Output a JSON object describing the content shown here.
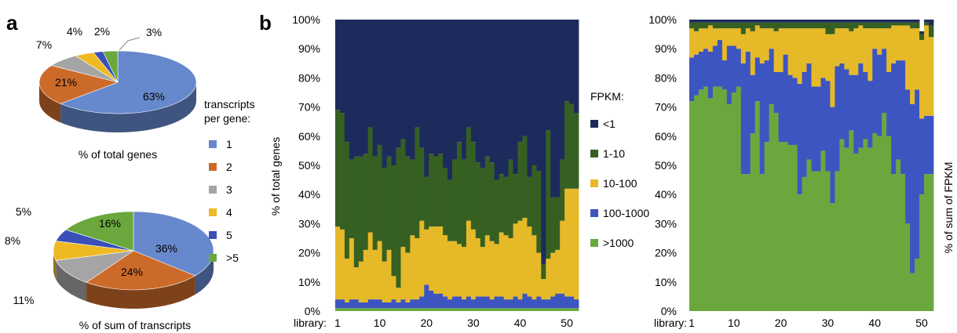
{
  "panels": {
    "a": "a",
    "b": "b"
  },
  "pie_legend": {
    "title": [
      "transcripts",
      "per gene:"
    ],
    "entries": [
      {
        "label": "1",
        "color": "#6688cc"
      },
      {
        "label": "2",
        "color": "#cc6a2a"
      },
      {
        "label": "3",
        "color": "#a5a5a5"
      },
      {
        "label": "4",
        "color": "#eeb922"
      },
      {
        "label": "5",
        "color": "#3a4fb8"
      },
      {
        "label": ">5",
        "color": "#6aa83e"
      }
    ]
  },
  "fpkm_legend": {
    "title": "FPKM:",
    "entries": [
      {
        "label": "<1",
        "color": "#1d2b5c"
      },
      {
        "label": "1-10",
        "color": "#365f22"
      },
      {
        "label": "10-100",
        "color": "#e6b928"
      },
      {
        "label": "100-1000",
        "color": "#3d55c0"
      },
      {
        "label": ">1000",
        "color": "#6aa83e"
      }
    ]
  },
  "chart_data": [
    {
      "type": "pie",
      "title": "% of total genes",
      "categories": [
        "1",
        "2",
        "3",
        "4",
        "5",
        ">5"
      ],
      "values": [
        63,
        21,
        7,
        4,
        2,
        3
      ],
      "labels": [
        "63%",
        "21%",
        "7%",
        "4%",
        "2%",
        "3%"
      ]
    },
    {
      "type": "pie",
      "title": "% of sum of transcripts",
      "categories": [
        "1",
        "2",
        "3",
        "4",
        "5",
        ">5"
      ],
      "values": [
        36,
        24,
        11,
        8,
        5,
        16
      ],
      "labels": [
        "36%",
        "24%",
        "11%",
        "8%",
        "5%",
        "16%"
      ]
    },
    {
      "type": "bar",
      "stacked": true,
      "ylabel": "% of total genes",
      "xlabel_prefix": "library:",
      "xticks": [
        1,
        10,
        20,
        30,
        40,
        50
      ],
      "yticks": [
        "0%",
        "10%",
        "20%",
        "30%",
        "40%",
        "50%",
        "60%",
        "70%",
        "80%",
        "90%",
        "100%"
      ],
      "ylim": [
        0,
        100
      ],
      "categories": [
        1,
        2,
        3,
        4,
        5,
        6,
        7,
        8,
        9,
        10,
        11,
        12,
        13,
        14,
        15,
        16,
        17,
        18,
        19,
        20,
        21,
        22,
        23,
        24,
        25,
        26,
        27,
        28,
        29,
        30,
        31,
        32,
        33,
        34,
        35,
        36,
        37,
        38,
        39,
        40,
        41,
        42,
        43,
        44,
        45,
        46,
        47,
        48,
        49,
        50,
        51,
        52
      ],
      "series": [
        {
          "name": ">1000",
          "values": [
            1,
            1,
            1,
            1,
            1,
            1,
            1,
            1,
            1,
            1,
            1,
            1,
            1,
            1,
            1,
            1,
            1,
            1,
            1,
            1,
            1,
            1,
            1,
            1,
            1,
            1,
            1,
            1,
            1,
            1,
            1,
            1,
            1,
            1,
            1,
            1,
            1,
            1,
            1,
            1,
            1,
            1,
            1,
            1,
            1,
            1,
            1,
            1,
            1,
            1,
            1,
            1
          ]
        },
        {
          "name": "100-1000",
          "values": [
            3,
            3,
            2,
            3,
            3,
            2,
            2,
            3,
            3,
            3,
            2,
            2,
            3,
            2,
            3,
            2,
            3,
            3,
            4,
            8,
            6,
            5,
            5,
            4,
            3,
            4,
            4,
            3,
            4,
            3,
            4,
            4,
            4,
            3,
            4,
            4,
            3,
            3,
            4,
            3,
            5,
            4,
            3,
            4,
            3,
            3,
            4,
            5,
            5,
            4,
            4,
            3
          ]
        },
        {
          "name": "10-100",
          "values": [
            25,
            24,
            15,
            21,
            11,
            14,
            18,
            23,
            17,
            20,
            14,
            18,
            8,
            5,
            18,
            17,
            22,
            21,
            26,
            19,
            22,
            23,
            23,
            21,
            20,
            19,
            18,
            18,
            26,
            24,
            20,
            17,
            21,
            20,
            18,
            22,
            22,
            21,
            25,
            27,
            26,
            24,
            22,
            15,
            7,
            14,
            15,
            15,
            25,
            37,
            37,
            38
          ]
        },
        {
          "name": "1-10",
          "values": [
            40,
            40,
            40,
            27,
            38,
            36,
            33,
            36,
            32,
            33,
            32,
            32,
            38,
            48,
            37,
            33,
            26,
            38,
            25,
            18,
            25,
            24,
            25,
            23,
            21,
            28,
            35,
            30,
            32,
            30,
            26,
            27,
            27,
            27,
            22,
            20,
            20,
            27,
            17,
            27,
            28,
            17,
            24,
            28,
            5,
            44,
            19,
            18,
            21,
            30,
            29,
            26
          ]
        },
        {
          "name": "<1",
          "values": [
            31,
            32,
            42,
            48,
            47,
            47,
            46,
            37,
            47,
            43,
            51,
            48,
            51,
            44,
            41,
            48,
            48,
            37,
            44,
            54,
            46,
            47,
            46,
            51,
            55,
            48,
            42,
            48,
            37,
            42,
            49,
            51,
            47,
            49,
            55,
            53,
            54,
            48,
            53,
            42,
            40,
            54,
            50,
            52,
            84,
            38,
            61,
            61,
            48,
            28,
            29,
            32
          ]
        }
      ]
    },
    {
      "type": "bar",
      "stacked": true,
      "ylabel": "% of sum of FPKM",
      "xlabel_prefix": "library:",
      "xticks": [
        1,
        10,
        20,
        30,
        40,
        50
      ],
      "yticks": [
        "0%",
        "10%",
        "20%",
        "30%",
        "40%",
        "50%",
        "60%",
        "70%",
        "80%",
        "90%",
        "100%"
      ],
      "ylim": [
        0,
        100
      ],
      "categories": [
        1,
        2,
        3,
        4,
        5,
        6,
        7,
        8,
        9,
        10,
        11,
        12,
        13,
        14,
        15,
        16,
        17,
        18,
        19,
        20,
        21,
        22,
        23,
        24,
        25,
        26,
        27,
        28,
        29,
        30,
        31,
        32,
        33,
        34,
        35,
        36,
        37,
        38,
        39,
        40,
        41,
        42,
        43,
        44,
        45,
        46,
        47,
        48,
        49,
        50,
        51,
        52
      ],
      "series": [
        {
          "name": ">1000",
          "values": [
            72,
            74,
            76,
            77,
            73,
            77,
            77,
            76,
            71,
            75,
            77,
            47,
            47,
            61,
            72,
            47,
            58,
            71,
            68,
            58,
            58,
            57,
            57,
            40,
            46,
            52,
            48,
            48,
            55,
            48,
            37,
            48,
            59,
            56,
            62,
            54,
            56,
            59,
            56,
            61,
            60,
            68,
            60,
            47,
            52,
            47,
            30,
            13,
            18,
            40,
            47,
            47
          ]
        },
        {
          "name": "100-1000",
          "values": [
            15,
            14,
            13,
            13,
            16,
            14,
            16,
            10,
            20,
            16,
            13,
            38,
            42,
            20,
            15,
            38,
            28,
            19,
            14,
            24,
            30,
            24,
            23,
            38,
            36,
            33,
            29,
            29,
            25,
            31,
            33,
            36,
            26,
            27,
            19,
            27,
            29,
            23,
            23,
            29,
            28,
            22,
            22,
            38,
            34,
            39,
            46,
            58,
            58,
            26,
            20,
            20
          ]
        },
        {
          "name": "10-100",
          "values": [
            10,
            8,
            8,
            7,
            9,
            6,
            4,
            11,
            6,
            6,
            7,
            10,
            8,
            15,
            11,
            12,
            11,
            7,
            14,
            15,
            9,
            16,
            17,
            19,
            15,
            12,
            20,
            20,
            17,
            16,
            25,
            13,
            12,
            14,
            15,
            16,
            13,
            15,
            18,
            7,
            9,
            7,
            15,
            13,
            12,
            12,
            22,
            26,
            21,
            27,
            31,
            27
          ]
        },
        {
          "name": "1-10",
          "values": [
            2,
            3,
            2,
            2,
            1,
            2,
            2,
            2,
            2,
            2,
            2,
            4,
            2,
            3,
            1,
            2,
            2,
            2,
            3,
            2,
            2,
            2,
            2,
            2,
            2,
            2,
            2,
            2,
            2,
            4,
            4,
            2,
            2,
            2,
            3,
            2,
            1,
            2,
            2,
            2,
            2,
            2,
            2,
            1,
            1,
            1,
            1,
            2,
            2,
            2,
            1,
            4
          ]
        },
        {
          "name": "<1",
          "values": [
            1,
            1,
            1,
            1,
            1,
            1,
            1,
            1,
            1,
            1,
            1,
            1,
            1,
            1,
            1,
            1,
            1,
            1,
            1,
            1,
            1,
            1,
            1,
            1,
            1,
            1,
            1,
            1,
            1,
            1,
            1,
            1,
            1,
            1,
            1,
            1,
            1,
            1,
            1,
            1,
            1,
            1,
            1,
            1,
            1,
            1,
            1,
            1,
            1,
            1,
            1,
            2
          ]
        }
      ]
    }
  ]
}
